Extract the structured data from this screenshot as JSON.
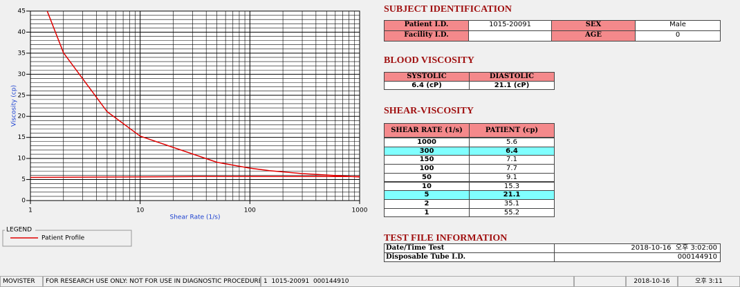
{
  "chart_data": {
    "type": "line",
    "x_label": "Shear Rate (1/s)",
    "y_label": "Viscosity (cp)",
    "xlim": [
      1,
      1000
    ],
    "xticks": [
      1,
      10,
      100,
      1000
    ],
    "x_log": true,
    "ylim": [
      0,
      45
    ],
    "yticks": [
      0,
      5,
      10,
      15,
      20,
      25,
      30,
      35,
      40,
      45
    ],
    "grid": true,
    "legend_title": "LEGEND",
    "series": [
      {
        "name": "Patient Profile",
        "color": "#e00000",
        "x": [
          1,
          2,
          5,
          10,
          50,
          100,
          150,
          300,
          1000
        ],
        "values": [
          55.2,
          35.1,
          21.1,
          15.3,
          9.1,
          7.7,
          7.1,
          6.4,
          5.6
        ]
      },
      {
        "color": "#e00000",
        "x": [
          1,
          35,
          1000
        ],
        "values": [
          5.5,
          5.7,
          5.7
        ]
      }
    ]
  },
  "subject": {
    "title": "SUBJECT IDENTIFICATION",
    "rows": [
      [
        "Patient I.D.",
        "1015-20091",
        "SEX",
        "Male"
      ],
      [
        "Facility I.D.",
        null,
        "AGE",
        "0"
      ]
    ]
  },
  "blood_viscosity": {
    "title": "BLOOD VISCOSITY",
    "header": [
      "SYSTOLIC",
      "DIASTOLIC"
    ],
    "values": [
      "6.4 (cP)",
      "21.1 (cP)"
    ]
  },
  "shear_viscosity": {
    "title": "SHEAR-VISCOSITY",
    "header": [
      "SHEAR RATE (1/s)",
      "PATIENT (cp)"
    ],
    "rows": [
      [
        "1000",
        "5.6"
      ],
      [
        "300",
        "6.4"
      ],
      [
        "150",
        "7.1"
      ],
      [
        "100",
        "7.7"
      ],
      [
        "50",
        "9.1"
      ],
      [
        "10",
        "15.3"
      ],
      [
        "5",
        "21.1"
      ],
      [
        "2",
        "35.1"
      ],
      [
        "1",
        "55.2"
      ]
    ],
    "highlighted": [
      1,
      6
    ]
  },
  "test_file": {
    "title": "TEST FILE INFORMATION",
    "rows": [
      [
        "Date/Time Test",
        "2018-10-16  오후 3:02:00"
      ],
      [
        "Disposable Tube I.D.",
        "000144910"
      ]
    ]
  },
  "status_bar": [
    "MOVISTER",
    "FOR RESEARCH USE ONLY: NOT FOR USE IN DIAGNOSTIC PROCEDURES",
    "1  1015-20091  000144910",
    "2018-10-16",
    "오후 3:11"
  ]
}
